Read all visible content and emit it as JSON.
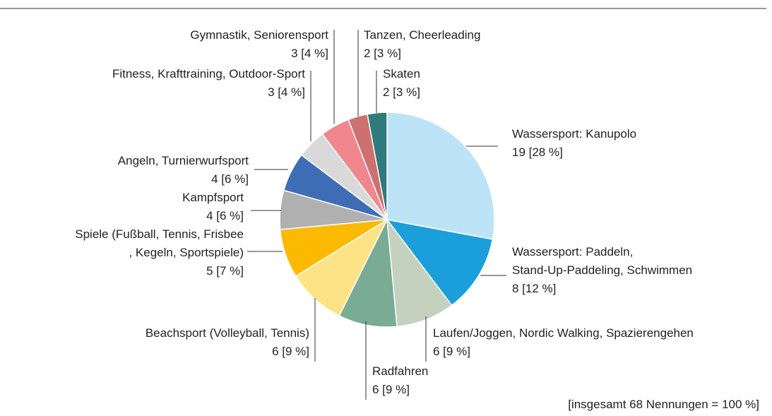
{
  "chart_data": {
    "type": "pie",
    "categories": [
      "Wassersport: Kanupolo",
      "Wassersport: Paddeln, Stand-Up-Paddeling, Schwimmen",
      "Laufen/Joggen, Nordic Walking, Spazierengehen",
      "Radfahren",
      "Beachsport (Volleyball, Tennis)",
      "Spiele (Fußball, Tennis, Frisbee, Kegeln, Sportspiele)",
      "Kampfsport",
      "Angeln, Turnierwurfsport",
      "Fitness, Krafttraining, Outdoor-Sport",
      "Gymnastik, Seniorensport",
      "Tanzen, Cheerleading",
      "Skaten"
    ],
    "values": [
      19,
      8,
      6,
      6,
      6,
      5,
      4,
      4,
      3,
      3,
      2,
      2
    ],
    "value_labels": [
      "19 [28 %]",
      "8 [12 %]",
      "6 [9 %]",
      "6 [9 %]",
      "6 [9 %]",
      "5 [7 %]",
      "4 [6 %]",
      "4 [6 %]",
      "3 [4 %]",
      "3 [4 %]",
      "2 [3 %]",
      "2 [3 %]"
    ],
    "colors": [
      "#bde3f7",
      "#1a9fdb",
      "#c3d1be",
      "#7aab93",
      "#fde385",
      "#fbb900",
      "#b0b0b0",
      "#3f6db5",
      "#d9d9d9",
      "#f0868e",
      "#cc7070",
      "#2f7b7b"
    ],
    "note": "[insgesamt 68 Nennungen = 100 %]"
  }
}
